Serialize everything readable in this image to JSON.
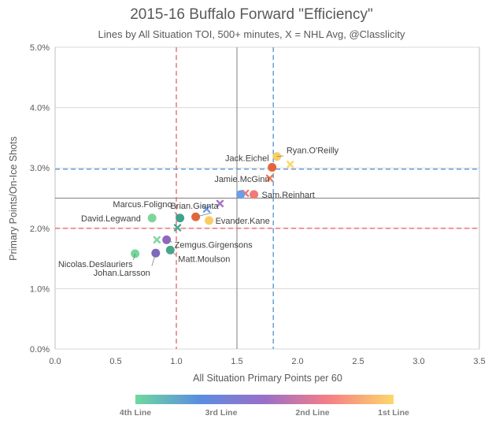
{
  "chart_data": {
    "type": "scatter",
    "title": "2015-16 Buffalo Forward \"Efficiency\"",
    "subtitle": "Lines by All Situation TOI, 500+ minutes, X = NHL Avg, @Classlicity",
    "xlabel": "All Situation Primary Points per 60",
    "ylabel": "Primary Points/On-Ice Shots",
    "xlim": [
      0,
      3.5
    ],
    "ylim": [
      0,
      0.05
    ],
    "x_ticks": [
      "0.0",
      "0.5",
      "1.0",
      "1.5",
      "2.0",
      "2.5",
      "3.0",
      "3.5"
    ],
    "y_ticks": [
      "0.0%",
      "1.0%",
      "2.0%",
      "3.0%",
      "4.0%",
      "5.0%"
    ],
    "grid": "horizontal major gridlines",
    "reference_lines": {
      "median_x": 1.5,
      "median_y": 0.025,
      "red_vertical_x": 1.0,
      "blue_vertical_x": 1.8,
      "red_horizontal_y": 0.02,
      "blue_horizontal_y": 0.0298
    },
    "color_scale": {
      "colors": [
        "#6fd8a0",
        "#5b8de0",
        "#9a6fc8",
        "#f57f86",
        "#fdd76a"
      ],
      "labels": [
        "4th Line",
        "3rd Line",
        "2nd Line",
        "1st Line"
      ]
    },
    "players": [
      {
        "label": "Ryan.O'Reilly",
        "x": 1.83,
        "y": 0.0319,
        "color": "#f9cd63",
        "line": "1st Line"
      },
      {
        "label": "Jack.Eichel",
        "x": 1.79,
        "y": 0.0301,
        "color": "#e5653a",
        "line": "1st Line"
      },
      {
        "label": "Jamie.McGinn",
        "x": 1.53,
        "y": 0.0256,
        "color": "#6c9de6",
        "line": "2nd Line"
      },
      {
        "label": "Sam.Reinhart",
        "x": 1.64,
        "y": 0.0256,
        "color": "#ef7a76",
        "line": "2nd Line"
      },
      {
        "label": "Brian.Gionta",
        "x": 1.16,
        "y": 0.0219,
        "color": "#e5653a",
        "line": "2nd Line"
      },
      {
        "label": "Evander.Kane",
        "x": 1.27,
        "y": 0.0213,
        "color": "#f9cd63",
        "line": "1st Line"
      },
      {
        "label": "Marcus.Foligno",
        "x": 1.03,
        "y": 0.0217,
        "color": "#3aa58e",
        "line": "3rd Line"
      },
      {
        "label": "David.Legwand",
        "x": 0.8,
        "y": 0.0217,
        "color": "#7ed59c",
        "line": "4th Line"
      },
      {
        "label": "Zemgus.Girgensons",
        "x": 0.92,
        "y": 0.0181,
        "color": "#8e67bf",
        "line": "3rd Line"
      },
      {
        "label": "Matt.Moulson",
        "x": 0.95,
        "y": 0.0164,
        "color": "#45a88c",
        "line": "3rd Line"
      },
      {
        "label": "Johan.Larsson",
        "x": 0.83,
        "y": 0.0159,
        "color": "#7e68be",
        "line": "3rd Line"
      },
      {
        "label": "Nicolas.Deslauriers",
        "x": 0.66,
        "y": 0.0158,
        "color": "#74d69c",
        "line": "4th Line"
      }
    ],
    "nhl_averages": [
      {
        "x": 1.94,
        "y": 0.0306,
        "color": "#fdd76a"
      },
      {
        "x": 1.77,
        "y": 0.0283,
        "color": "#ef7a5a"
      },
      {
        "x": 1.57,
        "y": 0.0258,
        "color": "#ef7a76"
      },
      {
        "x": 1.36,
        "y": 0.0241,
        "color": "#a874c4"
      },
      {
        "x": 1.25,
        "y": 0.0232,
        "color": "#6c9de6"
      },
      {
        "x": 1.01,
        "y": 0.0201,
        "color": "#45a88c"
      },
      {
        "x": 0.84,
        "y": 0.0181,
        "color": "#7ed59c"
      }
    ]
  }
}
